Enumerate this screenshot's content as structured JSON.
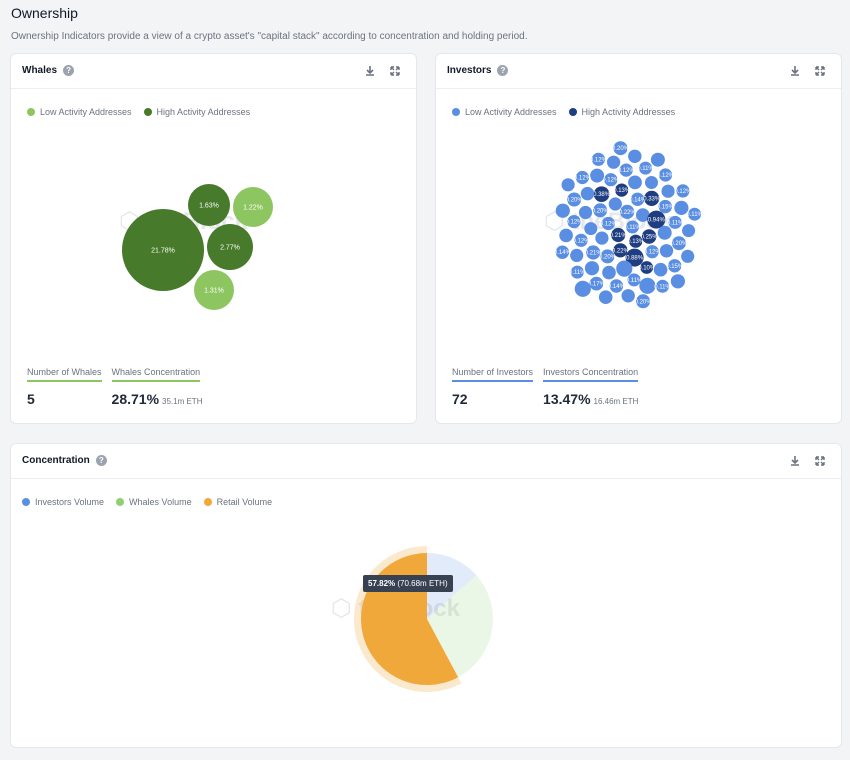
{
  "page": {
    "title": "Ownership",
    "subtitle": "Ownership Indicators provide a view of a crypto asset's \"capital stack\" according to concentration and holding period."
  },
  "watermark": "theBlock",
  "toolbar": {
    "download_icon": "download-icon",
    "expand_icon": "expand-icon"
  },
  "colors": {
    "whale_low": "#8dc660",
    "whale_high": "#477a2a",
    "investor_low": "#5a8ee2",
    "investor_high": "#1f3e82",
    "investors_volume": "#5b8fe0",
    "whales_volume": "#8fd072",
    "retail_volume": "#f0a83b"
  },
  "whales": {
    "title": "Whales",
    "legend": [
      "Low Activity Addresses",
      "High Activity Addresses"
    ],
    "stats": {
      "count_label": "Number of Whales",
      "count_value": "5",
      "concentration_label": "Whales Concentration",
      "concentration_value": "28.71%",
      "concentration_sub": "35.1m ETH"
    }
  },
  "investors": {
    "title": "Investors",
    "legend": [
      "Low Activity Addresses",
      "High Activity Addresses"
    ],
    "stats": {
      "count_label": "Number of Investors",
      "count_value": "72",
      "concentration_label": "Investors Concentration",
      "concentration_value": "13.47%",
      "concentration_sub": "16.46m ETH"
    }
  },
  "concentration": {
    "title": "Concentration",
    "legend": [
      "Investors Volume",
      "Whales Volume",
      "Retail Volume"
    ],
    "tooltip_value": "57.82%",
    "tooltip_detail": "(70.68m ETH)"
  },
  "chart_data": [
    {
      "type": "bubble",
      "name": "whales",
      "series": [
        {
          "name": "Low Activity Addresses",
          "values": [
            {
              "label": "1.22%",
              "value": 1.22
            },
            {
              "label": "1.31%",
              "value": 1.31
            }
          ]
        },
        {
          "name": "High Activity Addresses",
          "values": [
            {
              "label": "21.78%",
              "value": 21.78
            },
            {
              "label": "1.63%",
              "value": 1.63
            },
            {
              "label": "2.77%",
              "value": 2.77
            }
          ]
        }
      ]
    },
    {
      "type": "bubble",
      "name": "investors",
      "series": [
        {
          "name": "Low Activity Addresses",
          "count": 62,
          "values": [
            {
              "label": "0.11%",
              "value": 0.11
            },
            {
              "label": "0.22%",
              "value": 0.22
            },
            {
              "label": "0.12%",
              "value": 0.12
            },
            {
              "label": "0.16%",
              "value": 0.16
            },
            {
              "label": "0.12%",
              "value": 0.12
            },
            {
              "label": "0.12%",
              "value": 0.12
            },
            {
              "label": "0.14%",
              "value": 0.14
            },
            {
              "label": "0.20%",
              "value": 0.2
            },
            {
              "label": "0.20%",
              "value": 0.2
            },
            {
              "label": "0.12%",
              "value": 0.12
            },
            {
              "label": "0.11%",
              "value": 0.11
            },
            {
              "label": "0.48%",
              "value": 0.48
            },
            {
              "label": "0.20%",
              "value": 0.2
            },
            {
              "label": "0.21%",
              "value": 0.21
            },
            {
              "label": "0.17%",
              "value": 0.17
            },
            {
              "label": "0.12%",
              "value": 0.12
            },
            {
              "label": "0.15%",
              "value": 0.15
            },
            {
              "label": "0.16%",
              "value": 0.16
            },
            {
              "label": "0.12%",
              "value": 0.12
            },
            {
              "label": "0.15%",
              "value": 0.15
            },
            {
              "label": "0.12%",
              "value": 0.12
            },
            {
              "label": "0.11%",
              "value": 0.11
            },
            {
              "label": "0.11%",
              "value": 0.11
            },
            {
              "label": "0.15%",
              "value": 0.15
            }
          ]
        },
        {
          "name": "High Activity Addresses",
          "count": 10,
          "values": [
            {
              "label": "0.21%",
              "value": 0.21
            },
            {
              "label": "0.13%",
              "value": 0.13
            },
            {
              "label": "0.22%",
              "value": 0.22
            },
            {
              "label": "0.25%",
              "value": 0.25
            },
            {
              "label": "0.88%",
              "value": 0.88
            },
            {
              "label": "0.94%",
              "value": 0.94
            },
            {
              "label": "0.13%",
              "value": 0.13
            },
            {
              "label": "0.33%",
              "value": 0.33
            },
            {
              "label": "0.38%",
              "value": 0.38
            },
            {
              "label": "0.10%",
              "value": 0.1
            }
          ]
        }
      ]
    },
    {
      "type": "pie",
      "name": "concentration",
      "categories": [
        "Investors Volume",
        "Whales Volume",
        "Retail Volume"
      ],
      "values": [
        13.47,
        28.71,
        57.82
      ],
      "highlighted": "Retail Volume"
    }
  ]
}
